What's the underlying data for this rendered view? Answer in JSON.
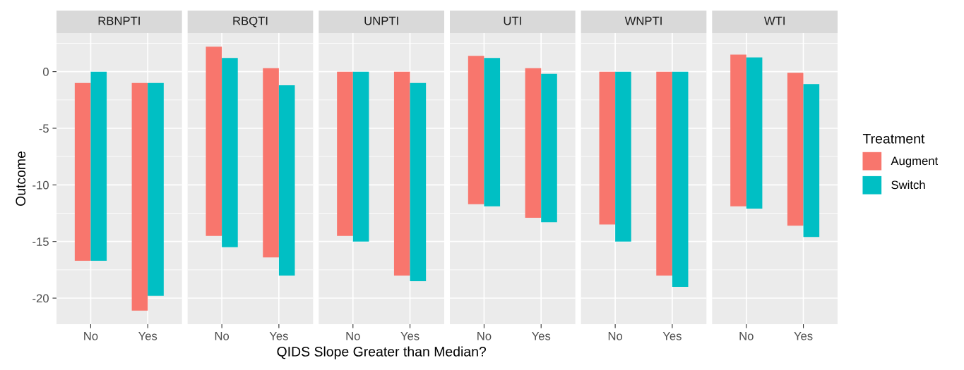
{
  "chart_data": [
    {
      "type": "bar",
      "title": "RBNPTI",
      "ylabel": "Outcome",
      "legend": "right",
      "legend_title": "Treatment",
      "categories": [
        "No",
        "Yes"
      ],
      "ylim": [
        -22.3,
        3.4
      ],
      "yticks": [
        -20,
        -15,
        -10,
        -5,
        0
      ],
      "grid": true,
      "series": [
        {
          "name": "Augment",
          "color": "#f8766d",
          "base": [
            -16.7,
            -21.1
          ],
          "values": [
            15.7,
            20.1
          ]
        },
        {
          "name": "Switch",
          "color": "#00bfc4",
          "base": [
            -16.7,
            -19.8
          ],
          "values": [
            16.7,
            18.8
          ]
        }
      ]
    },
    {
      "type": "bar",
      "title": "RBQTI",
      "tick_labels": "x",
      "categories": [
        "No",
        "Yes"
      ],
      "ylim": [
        -22.3,
        3.4
      ],
      "yticks": [
        -20,
        -15,
        -10,
        -5,
        0
      ],
      "grid": true,
      "series": [
        {
          "name": "Augment",
          "color": "#f8766d",
          "base": [
            -14.5,
            -16.4
          ],
          "values": [
            16.7,
            16.7
          ]
        },
        {
          "name": "Switch",
          "color": "#00bfc4",
          "base": [
            -15.5,
            -18.0
          ],
          "values": [
            16.7,
            16.8
          ]
        }
      ]
    },
    {
      "type": "bar",
      "title": "UNPTI",
      "xlabel": "QIDS Slope Greater than Median?",
      "tick_labels": "x",
      "categories": [
        "No",
        "Yes"
      ],
      "ylim": [
        -22.3,
        3.4
      ],
      "yticks": [
        -20,
        -15,
        -10,
        -5,
        0
      ],
      "grid": true,
      "series": [
        {
          "name": "Augment",
          "color": "#f8766d",
          "base": [
            -14.5,
            -18.0
          ],
          "values": [
            14.5,
            18.0
          ]
        },
        {
          "name": "Switch",
          "color": "#00bfc4",
          "base": [
            -15.0,
            -18.5
          ],
          "values": [
            15.0,
            17.5
          ]
        }
      ]
    },
    {
      "type": "bar",
      "title": "UTI",
      "tick_labels": "x",
      "categories": [
        "No",
        "Yes"
      ],
      "ylim": [
        -22.3,
        3.4
      ],
      "yticks": [
        -20,
        -15,
        -10,
        -5,
        0
      ],
      "grid": true,
      "series": [
        {
          "name": "Augment",
          "color": "#f8766d",
          "base": [
            -11.7,
            -12.9
          ],
          "values": [
            13.1,
            13.2
          ]
        },
        {
          "name": "Switch",
          "color": "#00bfc4",
          "base": [
            -11.9,
            -13.3
          ],
          "values": [
            13.1,
            13.1
          ]
        }
      ]
    },
    {
      "type": "bar",
      "title": "WNPTI",
      "tick_labels": "x",
      "categories": [
        "No",
        "Yes"
      ],
      "ylim": [
        -22.3,
        3.4
      ],
      "yticks": [
        -20,
        -15,
        -10,
        -5,
        0
      ],
      "grid": true,
      "series": [
        {
          "name": "Augment",
          "color": "#f8766d",
          "base": [
            -13.5,
            -18.0
          ],
          "values": [
            13.5,
            18.0
          ]
        },
        {
          "name": "Switch",
          "color": "#00bfc4",
          "base": [
            -15.0,
            -19.0
          ],
          "values": [
            15.0,
            19.0
          ]
        }
      ]
    },
    {
      "type": "bar",
      "title": "WTI",
      "tick_labels": "x",
      "categories": [
        "No",
        "Yes"
      ],
      "ylim": [
        -22.3,
        3.4
      ],
      "yticks": [
        -20,
        -15,
        -10,
        -5,
        0
      ],
      "grid": true,
      "series": [
        {
          "name": "Augment",
          "color": "#f8766d",
          "base": [
            -11.9,
            -13.6
          ],
          "values": [
            13.4,
            13.5
          ]
        },
        {
          "name": "Switch",
          "color": "#00bfc4",
          "base": [
            -12.1,
            -14.6
          ],
          "values": [
            13.35,
            13.5
          ]
        }
      ]
    }
  ]
}
